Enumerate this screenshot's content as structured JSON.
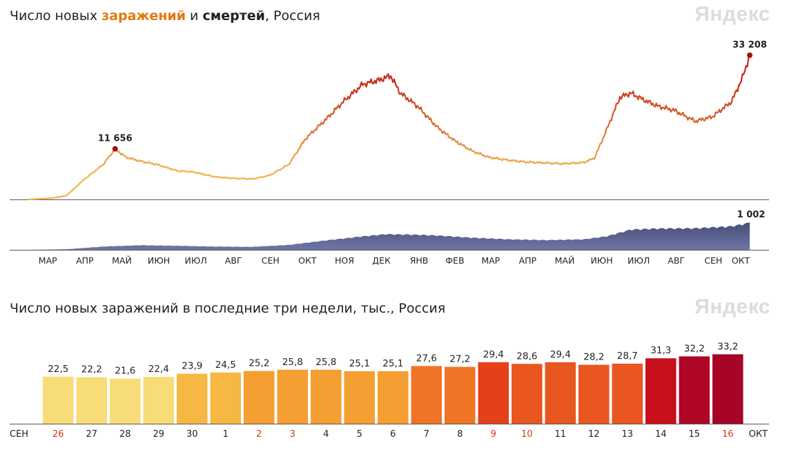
{
  "top": {
    "title_part1": "Число новых ",
    "title_infections": "заражений",
    "title_part2": " и ",
    "title_deaths": "смертей",
    "title_part3": ", Россия",
    "brand": "Яндекс"
  },
  "bottom": {
    "title": "Число новых заражений в последние три недели, тыс., Россия",
    "brand": "Яндекс"
  },
  "colors": {
    "cases_low": "#f0b552",
    "cases_high": "#c62a18",
    "deaths_fill": "#484e78",
    "marker": "#9e1515",
    "axis": "#555555",
    "weekend_label": "#d8361a"
  },
  "chart_data": [
    {
      "type": "line",
      "series": [
        {
          "name": "заражений",
          "x": [
            "2020-03-01",
            "2020-03-20",
            "2020-04-01",
            "2020-04-15",
            "2020-05-01",
            "2020-05-11",
            "2020-05-20",
            "2020-06-01",
            "2020-06-15",
            "2020-07-01",
            "2020-07-15",
            "2020-08-01",
            "2020-08-15",
            "2020-09-01",
            "2020-09-15",
            "2020-10-01",
            "2020-10-15",
            "2020-11-01",
            "2020-11-15",
            "2020-12-01",
            "2020-12-15",
            "2020-12-24",
            "2021-01-01",
            "2021-01-15",
            "2021-02-01",
            "2021-02-15",
            "2021-03-01",
            "2021-03-15",
            "2021-04-01",
            "2021-04-15",
            "2021-05-01",
            "2021-05-15",
            "2021-06-01",
            "2021-06-10",
            "2021-06-20",
            "2021-07-01",
            "2021-07-10",
            "2021-07-20",
            "2021-08-01",
            "2021-08-15",
            "2021-09-01",
            "2021-09-15",
            "2021-10-01",
            "2021-10-10",
            "2021-10-16"
          ],
          "y": [
            0,
            300,
            900,
            4500,
            8000,
            11656,
            9700,
            8800,
            8000,
            6600,
            6300,
            5200,
            4900,
            4700,
            5500,
            8000,
            14000,
            18500,
            22500,
            26500,
            27500,
            28500,
            24500,
            21500,
            16500,
            13500,
            11200,
            9700,
            9000,
            8600,
            8400,
            8200,
            8500,
            9500,
            16000,
            23500,
            24500,
            23000,
            21500,
            20500,
            18000,
            19000,
            22500,
            28000,
            33208
          ]
        },
        {
          "name": "смертей",
          "x": [
            "2020-03-01",
            "2020-04-01",
            "2020-05-01",
            "2020-06-01",
            "2020-07-01",
            "2020-08-01",
            "2020-09-01",
            "2020-10-01",
            "2020-11-01",
            "2020-12-01",
            "2020-12-20",
            "2021-01-15",
            "2021-02-01",
            "2021-03-01",
            "2021-04-01",
            "2021-05-01",
            "2021-06-01",
            "2021-06-20",
            "2021-07-10",
            "2021-08-01",
            "2021-09-01",
            "2021-10-01",
            "2021-10-16"
          ],
          "y": [
            0,
            20,
            120,
            170,
            150,
            120,
            110,
            180,
            350,
            500,
            580,
            560,
            530,
            450,
            390,
            360,
            390,
            500,
            750,
            790,
            800,
            870,
            1002
          ]
        }
      ],
      "annotations": [
        {
          "date": "2020-05-11",
          "value": "11 656"
        },
        {
          "date": "2021-10-16",
          "value": "33 208"
        },
        {
          "date": "2021-10-16",
          "value": "1 002"
        }
      ],
      "x_ticks": [
        "МАР",
        "АПР",
        "МАЙ",
        "ИЮН",
        "ИЮЛ",
        "АВГ",
        "СЕН",
        "ОКТ",
        "НОЯ",
        "ДЕК",
        "ЯНВ",
        "ФЕВ",
        "МАР",
        "АПР",
        "МАЙ",
        "ИЮН",
        "ИЮЛ",
        "АВГ",
        "СЕН",
        "ОКТ"
      ],
      "grid": false
    },
    {
      "type": "bar",
      "categories": [
        "26",
        "27",
        "28",
        "29",
        "30",
        "1",
        "2",
        "3",
        "4",
        "5",
        "6",
        "7",
        "8",
        "9",
        "10",
        "11",
        "12",
        "13",
        "14",
        "15",
        "16"
      ],
      "values": [
        22.5,
        22.2,
        21.6,
        22.4,
        23.9,
        24.5,
        25.2,
        25.8,
        25.8,
        25.1,
        25.1,
        27.6,
        27.2,
        29.4,
        28.6,
        29.4,
        28.2,
        28.7,
        31.3,
        32.2,
        33.2
      ],
      "labels": [
        "22,5",
        "22,2",
        "21,6",
        "22,4",
        "23,9",
        "24,5",
        "25,2",
        "25,8",
        "25,8",
        "25,1",
        "25,1",
        "27,6",
        "27,2",
        "29,4",
        "28,6",
        "29,4",
        "28,2",
        "28,7",
        "31,3",
        "32,2",
        "33,2"
      ],
      "weekend": [
        true,
        false,
        false,
        false,
        false,
        false,
        true,
        true,
        false,
        false,
        false,
        false,
        false,
        true,
        true,
        false,
        false,
        false,
        false,
        false,
        true
      ],
      "bar_colors": [
        "#f7dc77",
        "#f7dc77",
        "#f7dc77",
        "#f7dc77",
        "#f6b843",
        "#f6b843",
        "#f59e32",
        "#f59e32",
        "#f59e32",
        "#f59e32",
        "#f59e32",
        "#ef7426",
        "#ef7426",
        "#e5401a",
        "#e95620",
        "#e95620",
        "#e95620",
        "#e95620",
        "#c7101c",
        "#af0626",
        "#a60528"
      ],
      "start_month": "СЕН",
      "end_month": "ОКТ",
      "grid": false
    }
  ]
}
